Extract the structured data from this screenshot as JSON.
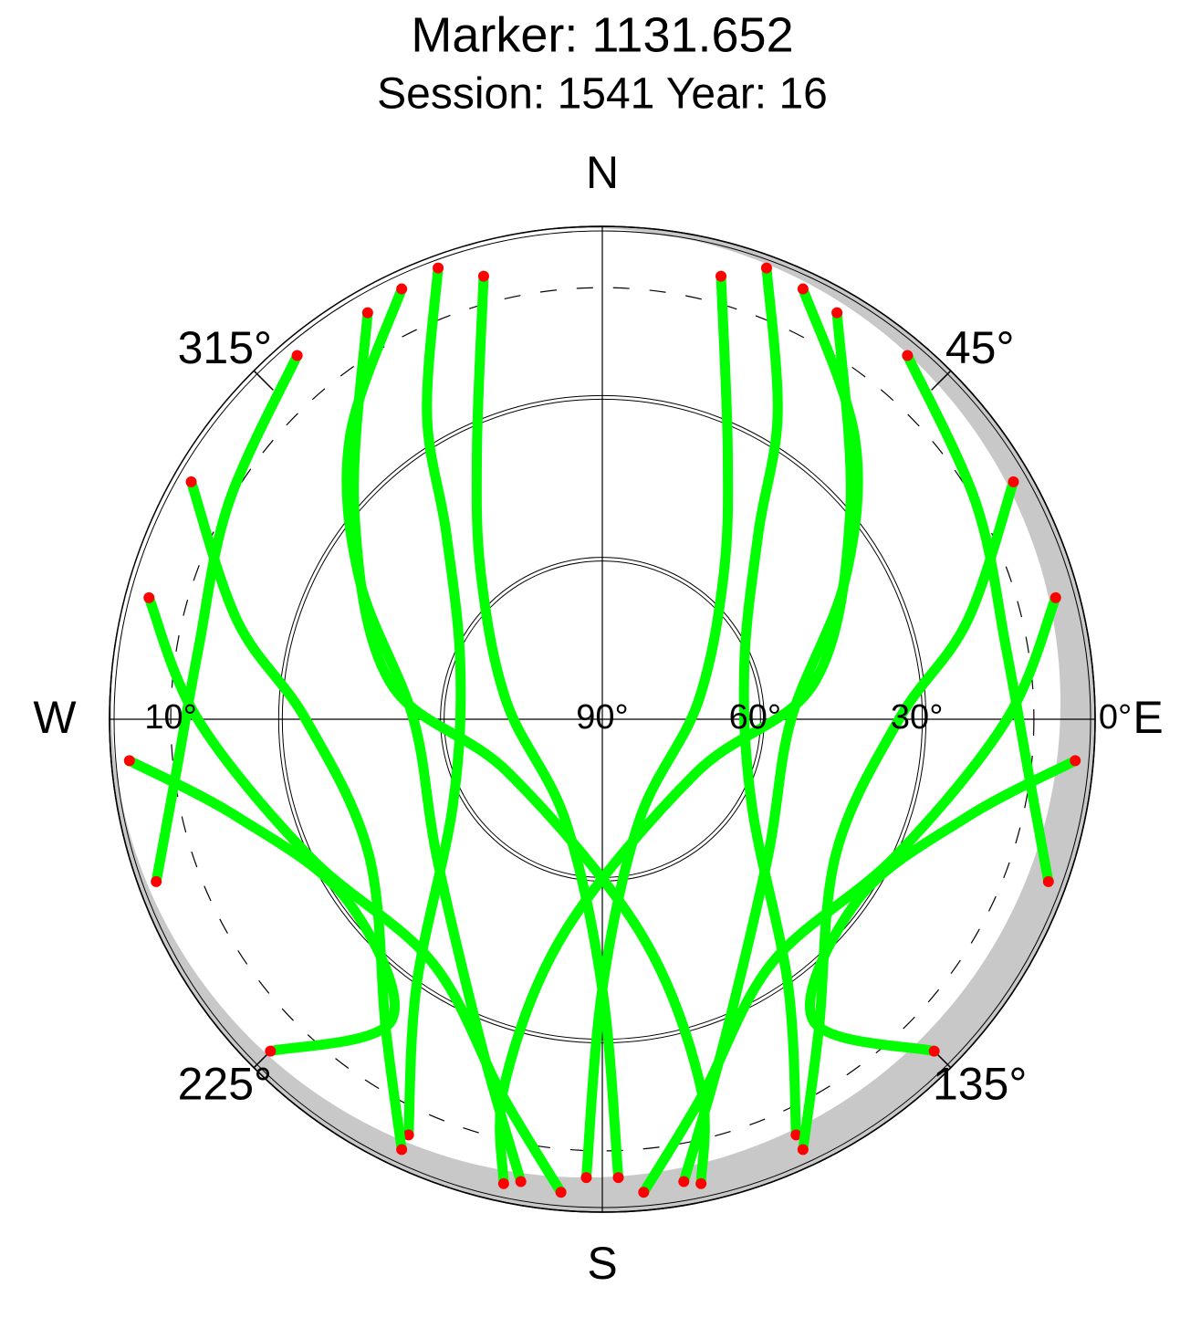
{
  "chart_data": {
    "type": "polar_track",
    "title": "Marker: 1131.652",
    "subtitle": "Session: 1541 Year: 16",
    "directions": [
      "N",
      "E",
      "S",
      "W"
    ],
    "azimuth_ticks": [
      {
        "value": 45,
        "label": "45°"
      },
      {
        "value": 135,
        "label": "135°"
      },
      {
        "value": 225,
        "label": "225°"
      },
      {
        "value": 315,
        "label": "315°"
      }
    ],
    "elevation_ticks": [
      {
        "value": 0,
        "label": "0°"
      },
      {
        "value": 30,
        "label": "30°"
      },
      {
        "value": 60,
        "label": "60°"
      },
      {
        "value": 90,
        "label": "90°"
      }
    ],
    "mask_elevation": {
      "value": 10,
      "label": "10°"
    },
    "track_color": "#00ff00",
    "endpoint_color": "#ff0000",
    "series": [
      {
        "az": [
          335,
          318,
          300,
          270,
          230,
          200,
          190
        ],
        "el": [
          2,
          20,
          38,
          55,
          50,
          25,
          3
        ]
      },
      {
        "az": [
          25,
          42,
          60,
          90,
          130,
          160,
          170
        ],
        "el": [
          2,
          20,
          38,
          55,
          50,
          25,
          3
        ]
      },
      {
        "az": [
          340,
          330,
          320,
          290,
          240,
          215,
          205
        ],
        "el": [
          1,
          25,
          45,
          62,
          58,
          30,
          5
        ]
      },
      {
        "az": [
          20,
          30,
          40,
          70,
          120,
          145,
          155
        ],
        "el": [
          1,
          25,
          45,
          62,
          58,
          30,
          5
        ]
      },
      {
        "az": [
          300,
          285,
          270,
          240,
          215,
          205
        ],
        "el": [
          2,
          20,
          35,
          40,
          20,
          2
        ]
      },
      {
        "az": [
          60,
          75,
          90,
          120,
          145,
          155
        ],
        "el": [
          2,
          20,
          35,
          40,
          20,
          2
        ]
      },
      {
        "az": [
          285,
          270,
          245,
          215,
          195,
          185
        ],
        "el": [
          3,
          15,
          30,
          35,
          18,
          2
        ]
      },
      {
        "az": [
          75,
          90,
          115,
          145,
          165,
          175
        ],
        "el": [
          3,
          15,
          30,
          35,
          18,
          2
        ]
      },
      {
        "az": [
          330,
          310,
          280,
          240,
          170,
          165,
          168
        ],
        "el": [
          3,
          30,
          50,
          70,
          50,
          20,
          2
        ]
      },
      {
        "az": [
          30,
          50,
          80,
          120,
          190,
          195,
          192
        ],
        "el": [
          3,
          30,
          50,
          70,
          50,
          20,
          2
        ]
      },
      {
        "az": [
          265,
          255,
          235,
          215,
          225
        ],
        "el": [
          2,
          20,
          32,
          22,
          3
        ]
      },
      {
        "az": [
          95,
          105,
          125,
          145,
          135
        ],
        "el": [
          2,
          20,
          32,
          22,
          3
        ]
      },
      {
        "az": [
          345,
          335,
          320,
          280,
          200,
          180,
          178
        ],
        "el": [
          5,
          35,
          55,
          72,
          70,
          40,
          5
        ]
      },
      {
        "az": [
          15,
          25,
          40,
          80,
          160,
          180,
          182
        ],
        "el": [
          5,
          35,
          55,
          72,
          70,
          40,
          5
        ]
      },
      {
        "az": [
          320,
          300,
          280,
          262,
          250
        ],
        "el": [
          2,
          10,
          14,
          10,
          2
        ]
      },
      {
        "az": [
          40,
          60,
          80,
          98,
          110
        ],
        "el": [
          2,
          10,
          14,
          10,
          2
        ]
      }
    ]
  }
}
